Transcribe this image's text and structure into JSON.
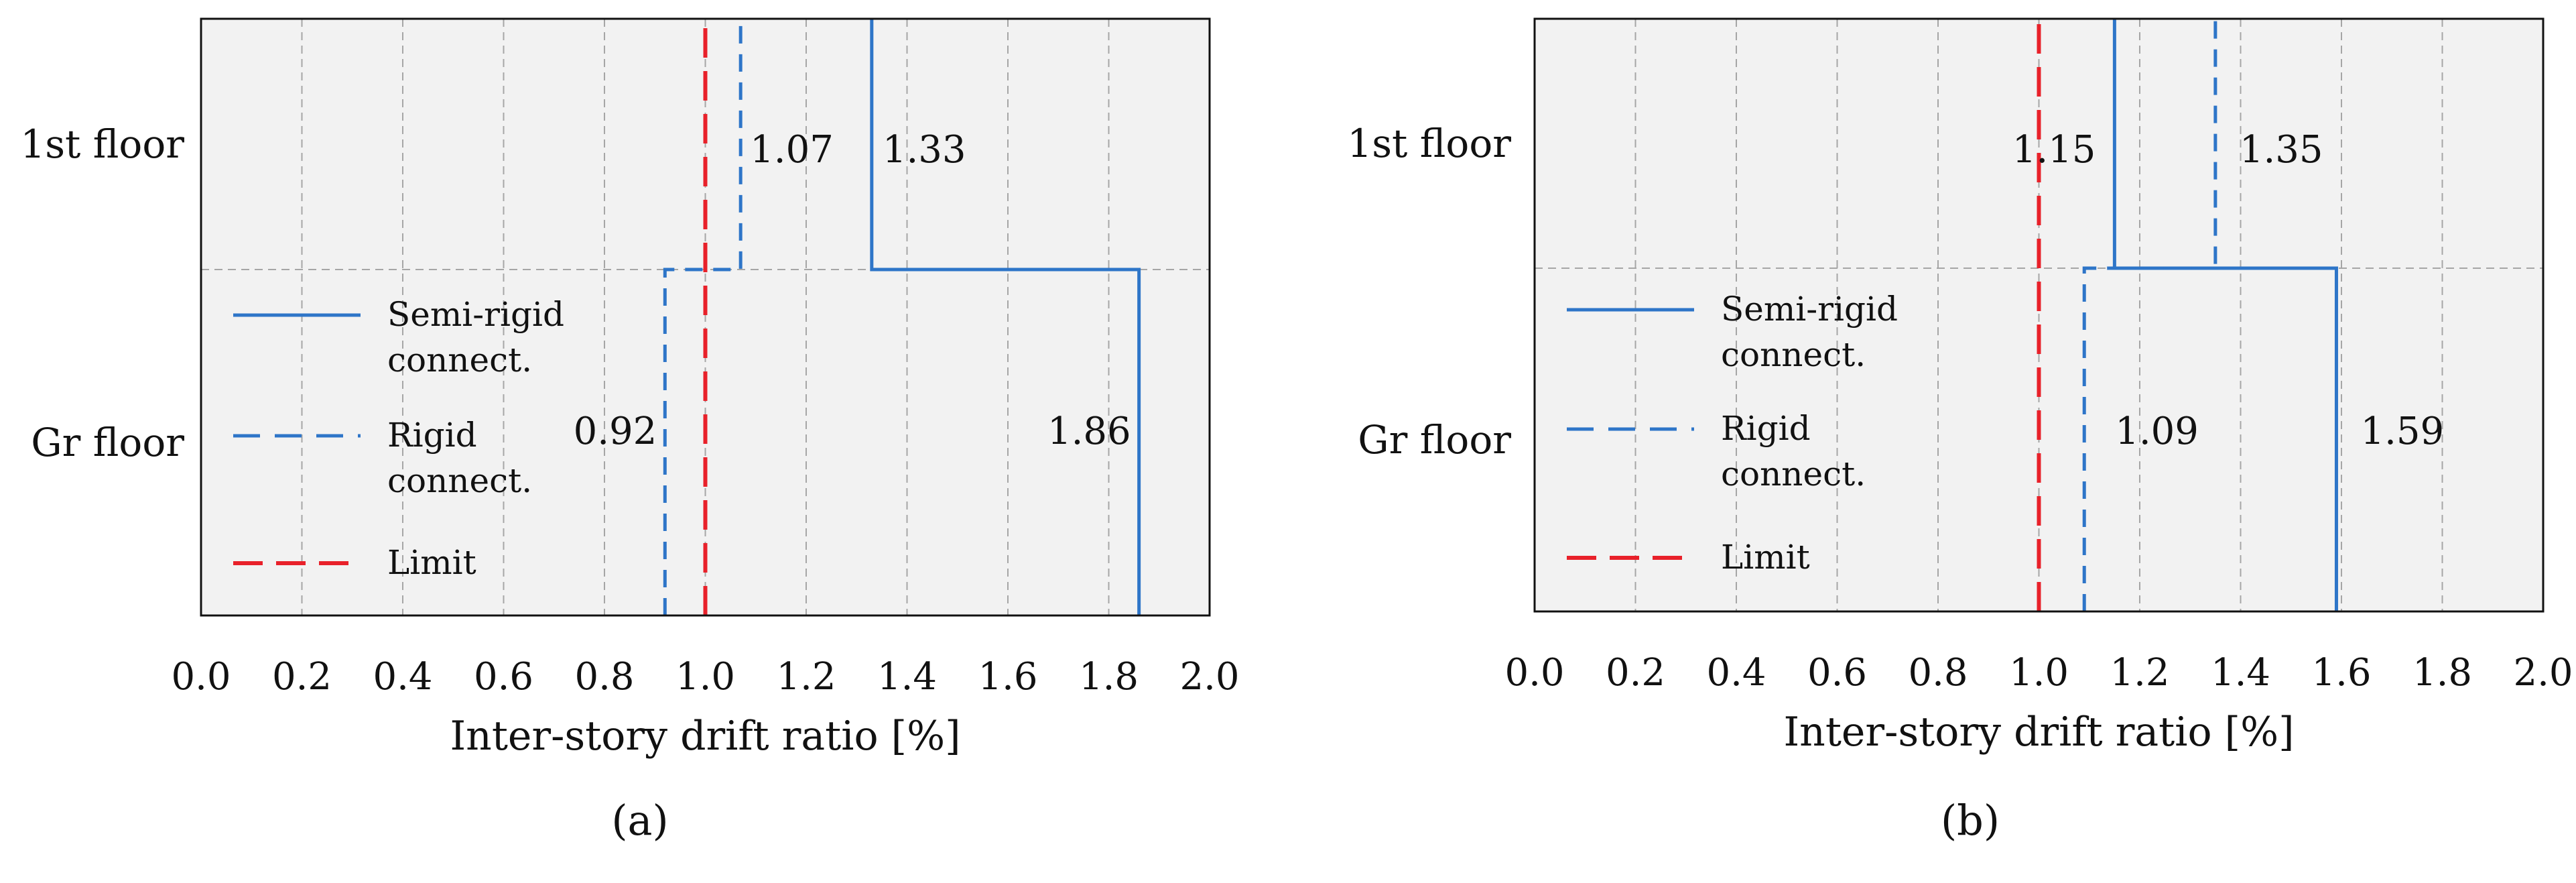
{
  "colors": {
    "semi_rigid": "#2E75C8",
    "rigid": "#2E75C8",
    "limit": "#E8212A",
    "plot_background": "#F2F2F2",
    "grid": "#A6A6A6"
  },
  "chart_data": [
    {
      "type": "step",
      "panel_label": "(a)",
      "xlabel": "Inter-story drift ratio [%]",
      "xlim": [
        0.0,
        2.0
      ],
      "xticks": [
        "0.0",
        "0.2",
        "0.4",
        "0.6",
        "0.8",
        "1.0",
        "1.2",
        "1.4",
        "1.6",
        "1.8",
        "2.0"
      ],
      "categories": [
        "Gr floor",
        "1st floor"
      ],
      "grid": true,
      "legend_position": "bottom-left",
      "series": [
        {
          "name": "Semi-rigid connect.",
          "style": "solid",
          "values": [
            1.86,
            1.33
          ],
          "labels": [
            "1.86",
            "1.33"
          ]
        },
        {
          "name": "Rigid connect.",
          "style": "dashed",
          "values": [
            0.92,
            1.07
          ],
          "labels": [
            "0.92",
            "1.07"
          ]
        },
        {
          "name": "Limit",
          "style": "dashed",
          "values": [
            1.0,
            1.0
          ],
          "labels": [
            "",
            ""
          ]
        }
      ]
    },
    {
      "type": "step",
      "panel_label": "(b)",
      "xlabel": "Inter-story drift ratio [%]",
      "xlim": [
        0.0,
        2.0
      ],
      "xticks": [
        "0.0",
        "0.2",
        "0.4",
        "0.6",
        "0.8",
        "1.0",
        "1.2",
        "1.4",
        "1.6",
        "1.8",
        "2.0"
      ],
      "categories": [
        "Gr floor",
        "1st floor"
      ],
      "grid": true,
      "legend_position": "bottom-left",
      "series": [
        {
          "name": "Semi-rigid connect.",
          "style": "solid",
          "values": [
            1.59,
            1.15
          ],
          "labels": [
            "1.59",
            "1.15"
          ]
        },
        {
          "name": "Rigid connect.",
          "style": "dashed",
          "values": [
            1.09,
            1.35
          ],
          "labels": [
            "1.09",
            "1.35"
          ]
        },
        {
          "name": "Limit",
          "style": "dashed",
          "values": [
            1.0,
            1.0
          ],
          "labels": [
            "",
            ""
          ]
        }
      ]
    }
  ]
}
